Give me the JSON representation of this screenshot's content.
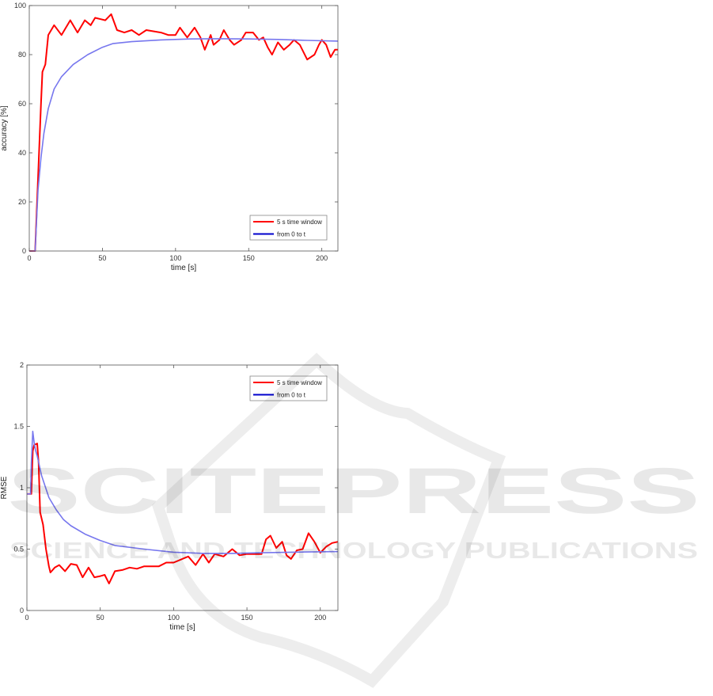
{
  "chart_data": [
    {
      "type": "line",
      "xlabel": "time [s]",
      "ylabel": "accuracy [%]",
      "xlim": [
        0,
        211
      ],
      "ylim": [
        0,
        100
      ],
      "xticks": [
        0,
        50,
        100,
        150,
        200
      ],
      "yticks": [
        0,
        20,
        40,
        60,
        80,
        100
      ],
      "grid": false,
      "legend_position": "bottom-right",
      "series": [
        {
          "name": "5 s time window",
          "color": "#ff0000",
          "x": [
            0,
            4,
            6,
            8,
            9,
            11,
            13,
            17,
            22,
            28,
            33,
            38,
            42,
            45,
            52,
            56,
            60,
            65,
            70,
            75,
            80,
            90,
            95,
            100,
            103,
            108,
            113,
            117,
            120,
            124,
            126,
            130,
            133,
            137,
            140,
            145,
            148,
            153,
            157,
            160,
            163,
            166,
            170,
            174,
            178,
            181,
            185,
            190,
            195,
            198,
            200,
            203,
            206,
            209,
            211
          ],
          "y": [
            0,
            0,
            30,
            60,
            73,
            76,
            88,
            92,
            88,
            94,
            89,
            94,
            92,
            95,
            94,
            96.5,
            90,
            89,
            90,
            88,
            90,
            89,
            88,
            88,
            91,
            87,
            91,
            87,
            82,
            88,
            84,
            86,
            90,
            86,
            84,
            86,
            89,
            89,
            86,
            87,
            83,
            80,
            85,
            82,
            84,
            86,
            84,
            78,
            80,
            84,
            86,
            84,
            79,
            82,
            82
          ]
        },
        {
          "name": "from 0 to t",
          "color": "#0000cc",
          "line_color": "#7777ee",
          "x": [
            0,
            4,
            6,
            8,
            10,
            13,
            17,
            22,
            30,
            40,
            50,
            57,
            70,
            90,
            110,
            130,
            150,
            170,
            190,
            211
          ],
          "y": [
            0,
            0,
            25,
            38,
            48,
            58,
            66,
            71,
            76,
            80,
            83,
            84.5,
            85.3,
            86,
            86.4,
            86.5,
            86.4,
            86.2,
            85.8,
            85.5
          ]
        }
      ]
    },
    {
      "type": "line",
      "xlabel": "time [s]",
      "ylabel": "RMSE",
      "xlim": [
        0,
        212
      ],
      "ylim": [
        0,
        2
      ],
      "xticks": [
        0,
        50,
        100,
        150,
        200
      ],
      "yticks": [
        0,
        0.5,
        1,
        1.5,
        2
      ],
      "grid": false,
      "legend_position": "top-right",
      "series": [
        {
          "name": "5 s time window",
          "color": "#ff0000",
          "x": [
            0,
            3,
            4,
            5,
            7,
            8,
            9,
            11,
            13,
            15,
            16,
            19,
            22,
            26,
            30,
            34,
            38,
            42,
            46,
            50,
            53,
            56,
            60,
            65,
            70,
            75,
            80,
            90,
            95,
            100,
            110,
            115,
            120,
            124,
            128,
            134,
            140,
            145,
            150,
            160,
            163,
            166,
            170,
            174,
            177,
            180,
            184,
            188,
            192,
            196,
            200,
            204,
            208,
            212
          ],
          "y": [
            0.95,
            0.95,
            1.3,
            1.35,
            1.36,
            1.2,
            0.8,
            0.7,
            0.5,
            0.36,
            0.31,
            0.35,
            0.37,
            0.32,
            0.38,
            0.37,
            0.27,
            0.35,
            0.27,
            0.28,
            0.29,
            0.22,
            0.32,
            0.33,
            0.35,
            0.34,
            0.36,
            0.36,
            0.39,
            0.39,
            0.44,
            0.37,
            0.46,
            0.39,
            0.46,
            0.44,
            0.5,
            0.45,
            0.46,
            0.46,
            0.58,
            0.61,
            0.51,
            0.56,
            0.45,
            0.42,
            0.49,
            0.5,
            0.63,
            0.56,
            0.47,
            0.52,
            0.55,
            0.56
          ]
        },
        {
          "name": "from 0 to t",
          "color": "#0000cc",
          "line_color": "#7777ee",
          "x": [
            0,
            2.5,
            3,
            4,
            5,
            6,
            7,
            10,
            15,
            20,
            25,
            30,
            40,
            50,
            60,
            80,
            100,
            120,
            140,
            160,
            180,
            212
          ],
          "y": [
            0.95,
            0.95,
            1.2,
            1.46,
            1.36,
            1.3,
            1.26,
            1.1,
            0.92,
            0.82,
            0.74,
            0.69,
            0.62,
            0.57,
            0.53,
            0.5,
            0.475,
            0.465,
            0.465,
            0.47,
            0.475,
            0.48
          ]
        }
      ]
    }
  ],
  "watermark": {
    "main": "SCITEPRESS",
    "sub": "SCIENCE AND TECHNOLOGY PUBLICATIONS"
  }
}
